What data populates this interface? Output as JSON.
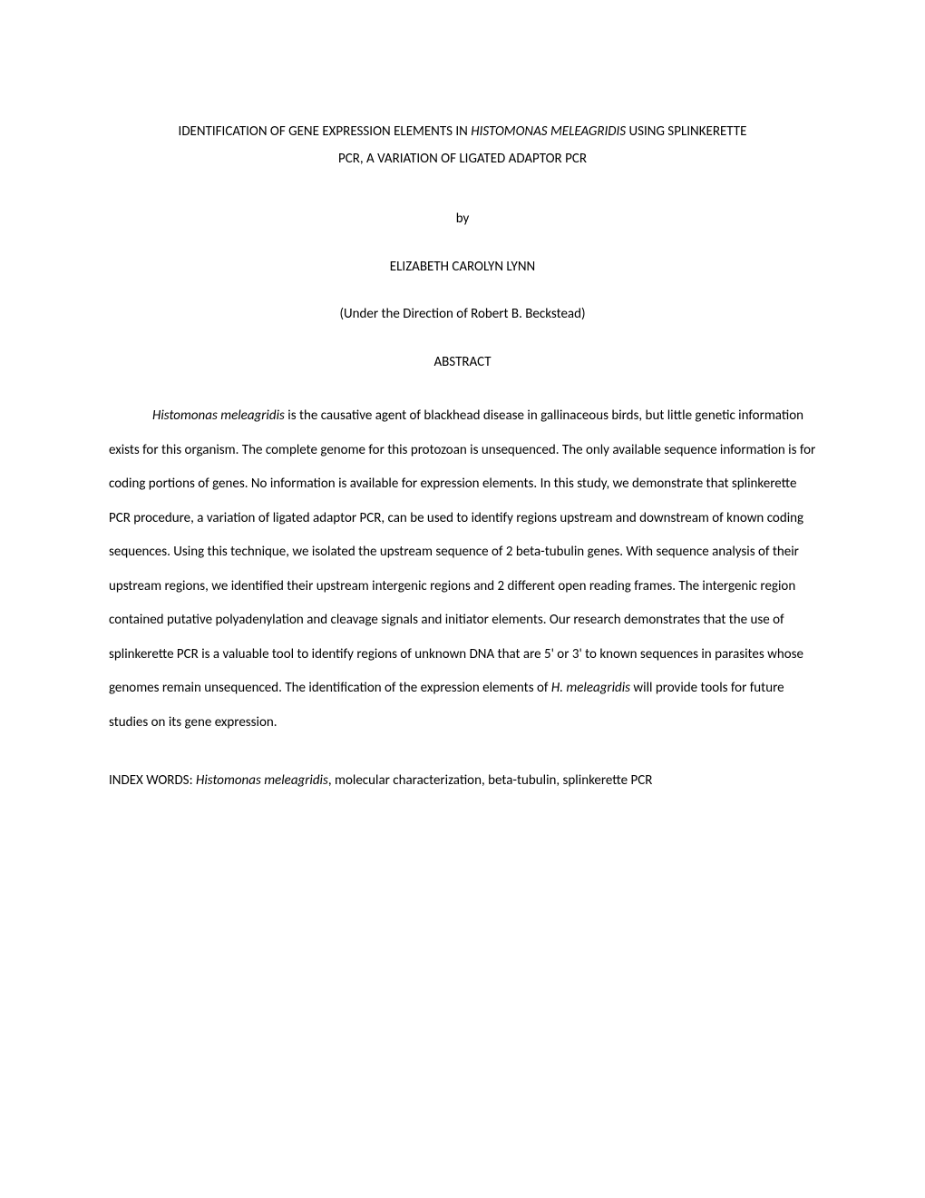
{
  "title": {
    "part1": "IDENTIFICATION OF GENE EXPRESSION ELEMENTS IN ",
    "italic1": "HISTOMONAS MELEAGRIDIS",
    "part2": " USING SPLINKERETTE",
    "line2": "PCR, A VARIATION OF LIGATED ADAPTOR PCR"
  },
  "by": "by",
  "author": "ELIZABETH CAROLYN LYNN",
  "direction": "(Under the Direction of Robert B. Beckstead)",
  "abstract_heading": "ABSTRACT",
  "abstract": {
    "italic_open": "Histomonas meleagridis",
    "body_part1": " is the causative agent of blackhead disease in gallinaceous birds, but little genetic information exists for this organism. The complete genome for this protozoan is unsequenced.  The only available sequence information is for coding portions of genes. No information is available for expression elements. In this study, we demonstrate that splinkerette PCR procedure, a variation of ligated adaptor PCR, can be used to identify regions upstream and downstream of known coding sequences. Using this technique, we isolated the upstream sequence of 2 beta-tubulin genes. With sequence analysis of their upstream regions, we identified their upstream intergenic regions and 2 different open reading frames. The intergenic region contained putative polyadenylation and cleavage signals and initiator elements. Our research demonstrates that the use of splinkerette PCR is a valuable tool to identify regions of unknown DNA that are 5' or 3' to known sequences in parasites whose genomes remain unsequenced. The identification of the expression elements of ",
    "italic_mid": "H. meleagridis",
    "body_part2": " will provide tools for future studies on its gene expression."
  },
  "index": {
    "label": "INDEX WORDS: ",
    "italic": "Histomonas meleagridis",
    "rest": ", molecular characterization, beta-tubulin, splinkerette PCR"
  }
}
